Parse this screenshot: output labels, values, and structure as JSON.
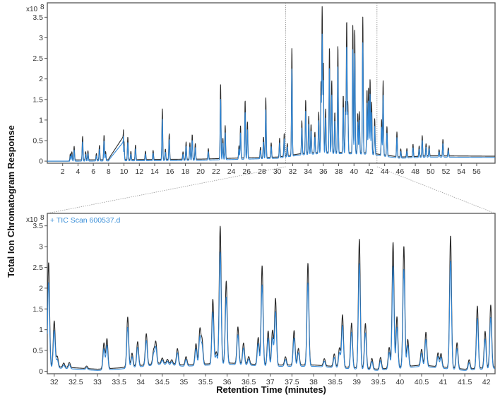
{
  "ylabel": "Total Ion Chromatogram Response",
  "xlabel": "Retention Time (minutes)",
  "colors": {
    "black_trace": "#2a2a2a",
    "blue_trace": "#2f86d6",
    "legend": "#3a8fd8"
  },
  "chart_data": [
    {
      "type": "line",
      "title": "",
      "multiplier_label": "x10",
      "multiplier_exp": "8",
      "xlim": [
        0,
        58.4
      ],
      "ylim": [
        -0.05,
        3.85
      ],
      "xticks": [
        2,
        4,
        6,
        8,
        10,
        12,
        14,
        16,
        18,
        20,
        22,
        24,
        26,
        28,
        30,
        32,
        34,
        36,
        38,
        40,
        42,
        44,
        46,
        48,
        50,
        52,
        54,
        56
      ],
      "yticks": [
        0,
        0.5,
        1,
        1.5,
        2,
        2.5,
        3,
        3.5
      ],
      "ytick_labels": [
        "0",
        "0.5",
        "1",
        "1.5",
        "2",
        "2.5",
        "3",
        "3.5"
      ],
      "zoom_window": [
        31.1,
        43.0
      ],
      "peak_width": 0.05,
      "blue_ratio": 0.82,
      "ramp": [
        8.0,
        0.02,
        9.95,
        0.57
      ],
      "baseline": [
        [
          0,
          0
        ],
        [
          2.8,
          0
        ],
        [
          3.0,
          0.03
        ],
        [
          20,
          0.05
        ],
        [
          30,
          0.1
        ],
        [
          33,
          0.18
        ],
        [
          36,
          0.22
        ],
        [
          42,
          0.2
        ],
        [
          46,
          0.1
        ],
        [
          50,
          0.13
        ],
        [
          58.4,
          0.12
        ]
      ],
      "peaks": [
        [
          3.0,
          0.15
        ],
        [
          3.2,
          0.2
        ],
        [
          3.5,
          0.33
        ],
        [
          4.6,
          0.57
        ],
        [
          5.0,
          0.2
        ],
        [
          5.3,
          0.22
        ],
        [
          6.4,
          0.15
        ],
        [
          6.8,
          0.35
        ],
        [
          7.4,
          0.6
        ],
        [
          7.6,
          0.2
        ],
        [
          10.0,
          0.45
        ],
        [
          10.5,
          0.55
        ],
        [
          10.9,
          0.2
        ],
        [
          11.5,
          0.35
        ],
        [
          12.8,
          0.2
        ],
        [
          13.8,
          0.22
        ],
        [
          15.0,
          1.23
        ],
        [
          15.4,
          0.25
        ],
        [
          15.9,
          0.62
        ],
        [
          17.7,
          0.18
        ],
        [
          18.1,
          0.42
        ],
        [
          18.6,
          0.4
        ],
        [
          18.9,
          0.6
        ],
        [
          19.3,
          0.38
        ],
        [
          21.0,
          0.25
        ],
        [
          22.6,
          1.8
        ],
        [
          22.9,
          0.5
        ],
        [
          23.2,
          0.8
        ],
        [
          25.0,
          0.3
        ],
        [
          25.2,
          0.78
        ],
        [
          25.8,
          1.4
        ],
        [
          26.1,
          0.87
        ],
        [
          27.8,
          0.25
        ],
        [
          28.2,
          0.5
        ],
        [
          28.5,
          1.45
        ],
        [
          29.2,
          0.35
        ],
        [
          30.3,
          0.45
        ],
        [
          30.9,
          0.55
        ],
        [
          31.3,
          0.3
        ],
        [
          31.9,
          2.6
        ],
        [
          33.2,
          0.8
        ],
        [
          33.7,
          1.3
        ],
        [
          34.1,
          0.9
        ],
        [
          34.4,
          0.7
        ],
        [
          34.9,
          0.5
        ],
        [
          35.4,
          0.98
        ],
        [
          35.7,
          1.7
        ],
        [
          35.85,
          3.5
        ],
        [
          36.0,
          2.15
        ],
        [
          36.3,
          1.05
        ],
        [
          36.8,
          2.55
        ],
        [
          37.1,
          1.75
        ],
        [
          37.5,
          0.98
        ],
        [
          37.9,
          2.6
        ],
        [
          38.6,
          1.4
        ],
        [
          38.9,
          1.2
        ],
        [
          39.05,
          3.2
        ],
        [
          39.2,
          1.2
        ],
        [
          39.85,
          3.1
        ],
        [
          40.1,
          3.0
        ],
        [
          40.5,
          0.95
        ],
        [
          40.7,
          1.0
        ],
        [
          41.15,
          3.3
        ],
        [
          41.7,
          1.55
        ],
        [
          41.9,
          1.6
        ],
        [
          42.1,
          1.8
        ],
        [
          42.3,
          1.25
        ],
        [
          42.7,
          0.85
        ],
        [
          43.6,
          0.85
        ],
        [
          43.8,
          1.8
        ],
        [
          44.3,
          0.7
        ],
        [
          45.6,
          0.6
        ],
        [
          46.1,
          0.2
        ],
        [
          46.9,
          0.2
        ],
        [
          47.7,
          0.3
        ],
        [
          48.5,
          0.25
        ],
        [
          48.9,
          0.5
        ],
        [
          49.4,
          0.3
        ],
        [
          49.8,
          0.25
        ],
        [
          51.1,
          0.15
        ],
        [
          51.6,
          0.4
        ],
        [
          52.3,
          0.2
        ]
      ]
    },
    {
      "type": "line",
      "title": "",
      "multiplier_label": "x10",
      "multiplier_exp": "8",
      "legend": "+ TIC Scan 600537.d",
      "legend_position": "top-left",
      "xlim": [
        31.84,
        42.2
      ],
      "ylim": [
        -0.06,
        3.8
      ],
      "xticks": [
        32,
        32.5,
        33,
        33.5,
        34,
        34.5,
        35,
        35.5,
        36,
        36.5,
        37,
        37.5,
        38,
        38.5,
        39,
        39.5,
        40,
        40.5,
        41,
        41.5,
        42
      ],
      "xtick_labels": [
        "32",
        "32.5",
        "33",
        "33.5",
        "34",
        "34.5",
        "35",
        "35.5",
        "36",
        "36.5",
        "37",
        "37.5",
        "38",
        "38.5",
        "39",
        "39.5",
        "40",
        "40.5",
        "41",
        "41.5",
        "42"
      ],
      "yticks": [
        0,
        0.5,
        1,
        1.5,
        2,
        2.5,
        3,
        3.5
      ],
      "ytick_labels": [
        "0",
        "0.5",
        "1",
        "1.5",
        "2",
        "2.5",
        "3",
        "3.5"
      ],
      "peak_width": 0.022,
      "blue_ratio": 0.82,
      "baseline": [
        [
          31.84,
          0.12
        ],
        [
          32.2,
          0.1
        ],
        [
          33.0,
          0.05
        ],
        [
          33.5,
          0.08
        ],
        [
          34.5,
          0.2
        ],
        [
          35.0,
          0.15
        ],
        [
          36.0,
          0.2
        ],
        [
          37.0,
          0.15
        ],
        [
          38.0,
          0.15
        ],
        [
          39.5,
          0.05
        ],
        [
          40.5,
          0.15
        ],
        [
          41.5,
          0.05
        ],
        [
          42.2,
          0.1
        ]
      ],
      "peaks": [
        [
          31.87,
          2.5
        ],
        [
          32.0,
          1.1
        ],
        [
          32.07,
          0.25
        ],
        [
          32.22,
          0.1
        ],
        [
          32.35,
          0.12
        ],
        [
          32.75,
          0.06
        ],
        [
          33.15,
          0.62
        ],
        [
          33.22,
          0.72
        ],
        [
          33.7,
          1.2
        ],
        [
          33.8,
          0.32
        ],
        [
          33.93,
          0.58
        ],
        [
          34.13,
          0.75
        ],
        [
          34.3,
          0.32
        ],
        [
          34.35,
          0.52
        ],
        [
          34.5,
          0.12
        ],
        [
          34.62,
          0.1
        ],
        [
          34.72,
          0.1
        ],
        [
          34.85,
          0.38
        ],
        [
          35.05,
          0.2
        ],
        [
          35.28,
          0.5
        ],
        [
          35.37,
          0.83
        ],
        [
          35.42,
          0.57
        ],
        [
          35.67,
          1.55
        ],
        [
          35.75,
          0.28
        ],
        [
          35.84,
          3.3
        ],
        [
          35.98,
          1.97
        ],
        [
          36.25,
          0.88
        ],
        [
          36.38,
          0.5
        ],
        [
          36.5,
          0.18
        ],
        [
          36.72,
          0.65
        ],
        [
          36.81,
          2.38
        ],
        [
          36.95,
          0.82
        ],
        [
          37.05,
          0.83
        ],
        [
          37.12,
          1.6
        ],
        [
          37.35,
          0.2
        ],
        [
          37.55,
          0.83
        ],
        [
          37.65,
          0.4
        ],
        [
          37.87,
          2.45
        ],
        [
          38.25,
          0.17
        ],
        [
          38.48,
          0.3
        ],
        [
          38.6,
          0.45
        ],
        [
          38.67,
          1.25
        ],
        [
          38.88,
          1.07
        ],
        [
          39.06,
          3.1
        ],
        [
          39.2,
          1.08
        ],
        [
          39.35,
          0.25
        ],
        [
          39.55,
          0.28
        ],
        [
          39.75,
          0.5
        ],
        [
          39.84,
          3.02
        ],
        [
          39.93,
          1.22
        ],
        [
          40.09,
          2.9
        ],
        [
          40.18,
          0.65
        ],
        [
          40.5,
          0.38
        ],
        [
          40.6,
          0.8
        ],
        [
          40.88,
          0.33
        ],
        [
          40.95,
          0.32
        ],
        [
          41.17,
          3.18
        ],
        [
          41.32,
          0.62
        ],
        [
          41.6,
          0.22
        ],
        [
          41.79,
          1.5
        ],
        [
          41.97,
          0.88
        ],
        [
          42.1,
          1.5
        ]
      ]
    }
  ]
}
